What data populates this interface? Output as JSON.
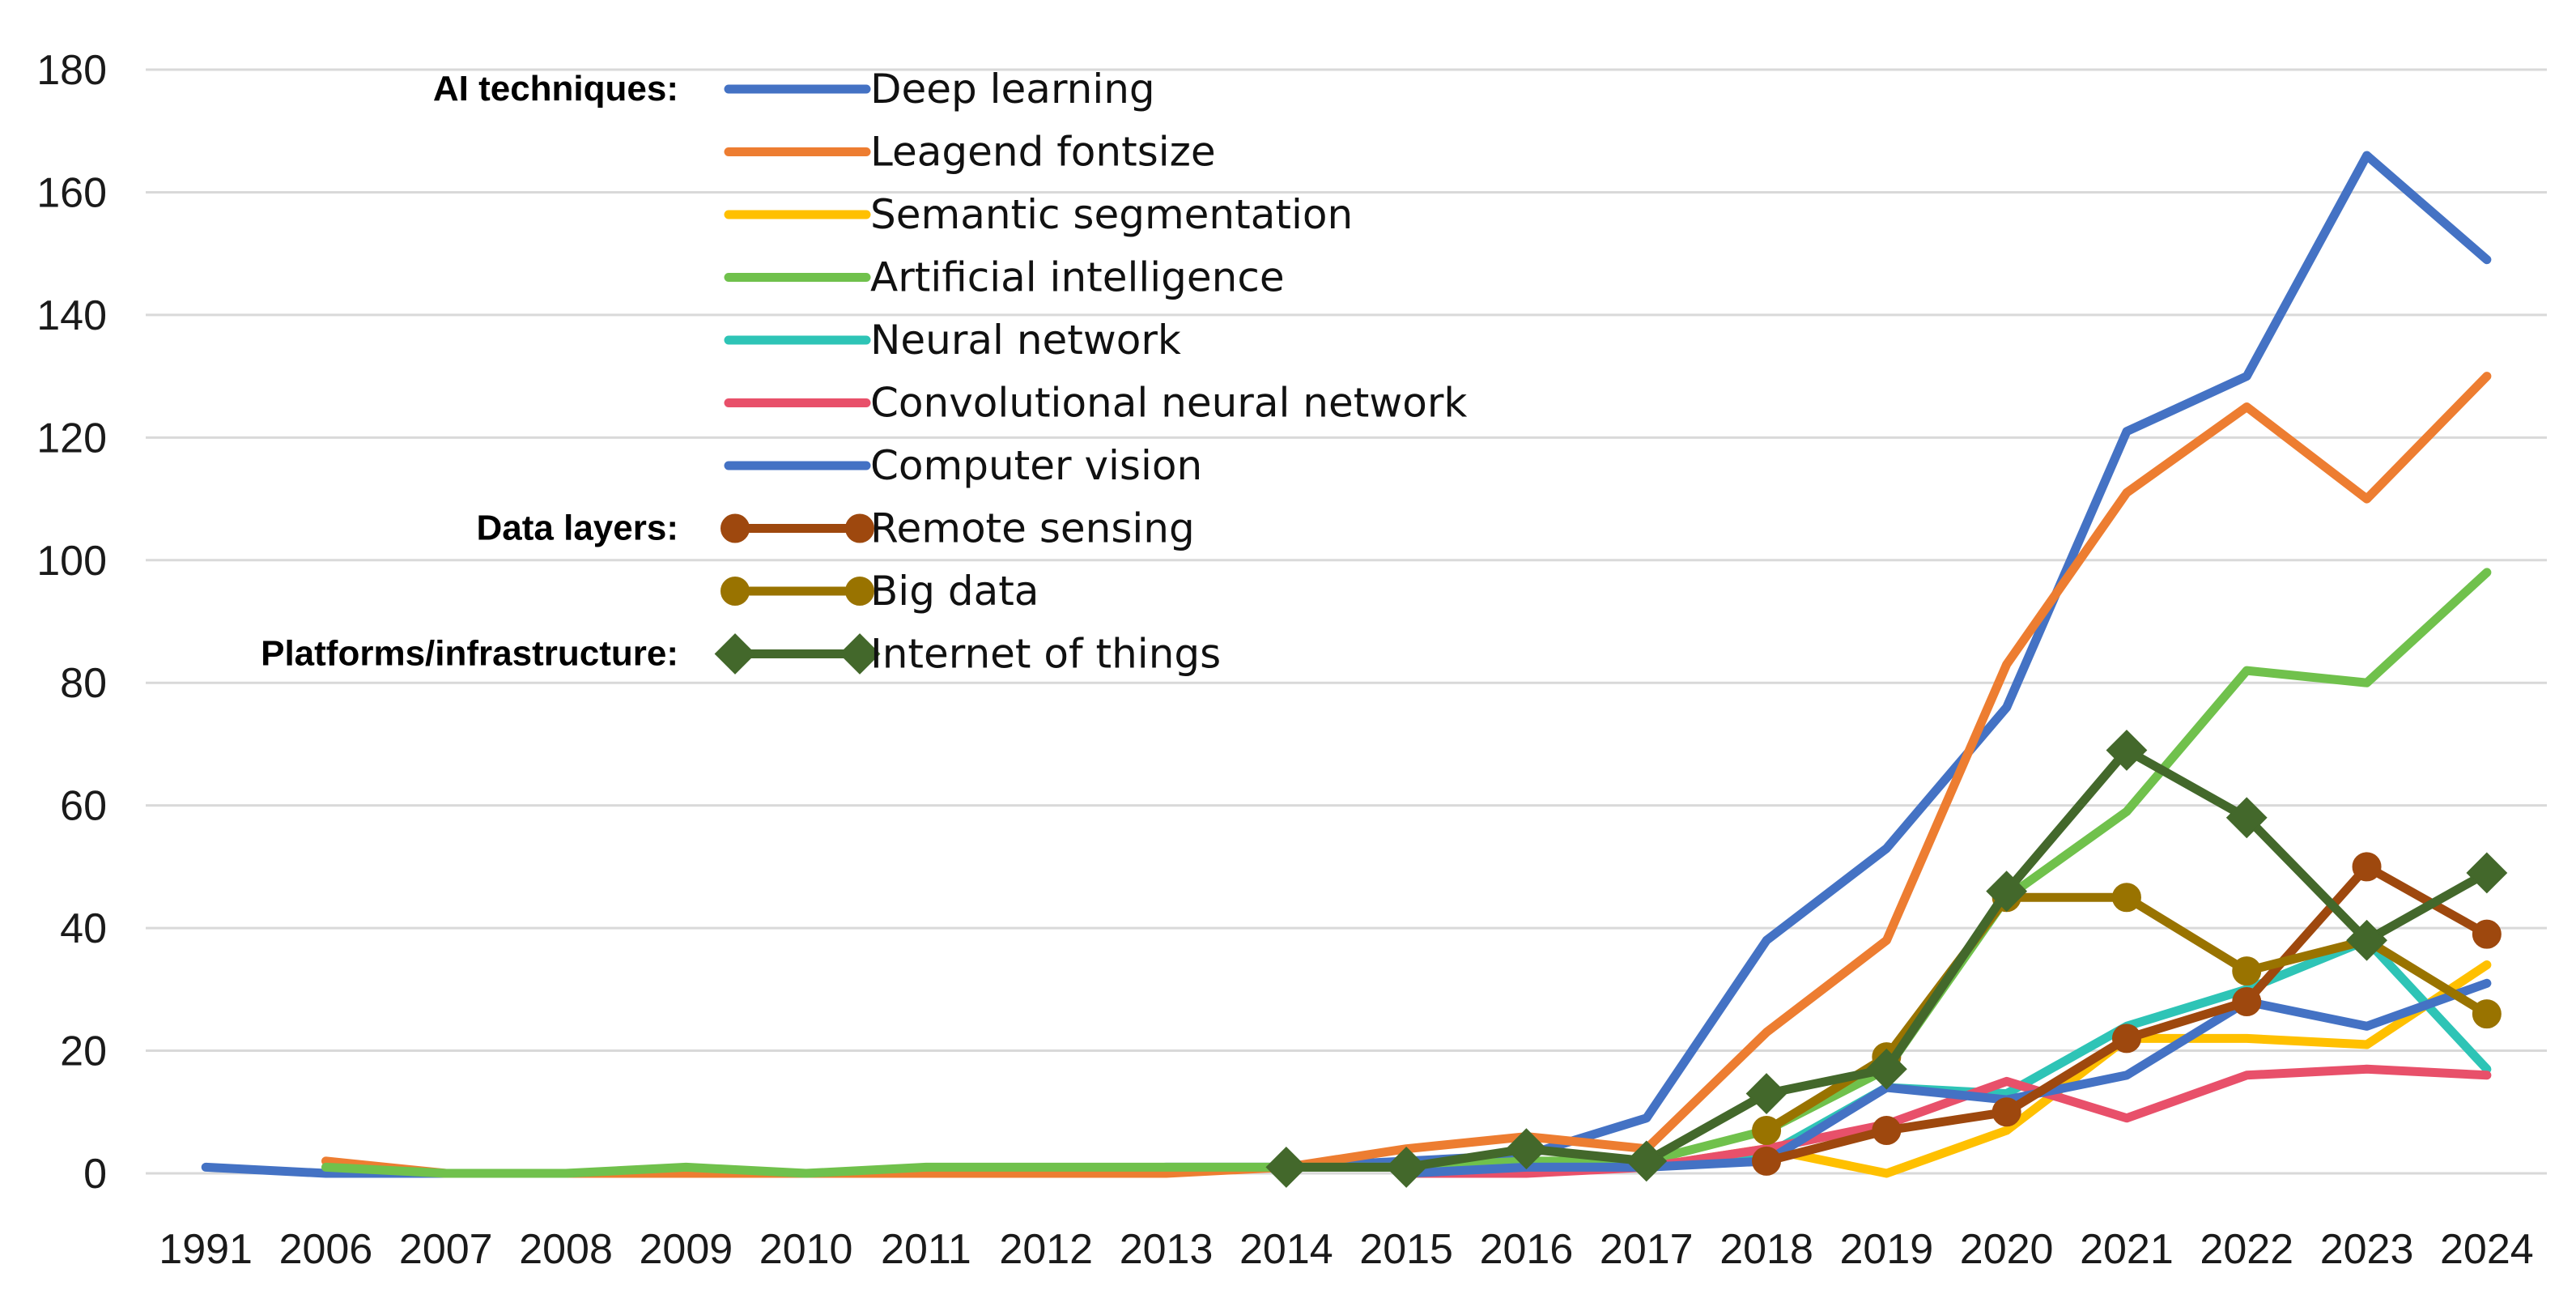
{
  "chart_data": {
    "type": "line",
    "title": "",
    "xlabel": "",
    "ylabel": "",
    "ylim": [
      0,
      180
    ],
    "yticks": [
      0,
      20,
      40,
      60,
      80,
      100,
      120,
      140,
      160,
      180
    ],
    "grid": true,
    "legend_position": "top-left",
    "categories": [
      "1991",
      "2006",
      "2007",
      "2008",
      "2009",
      "2010",
      "2011",
      "2012",
      "2013",
      "2014",
      "2015",
      "2016",
      "2017",
      "2018",
      "2019",
      "2020",
      "2021",
      "2022",
      "2023",
      "2024"
    ],
    "legend_groups": [
      {
        "label": "AI techniques:",
        "series_start": 0
      },
      {
        "label": "Data layers:",
        "series_start": 7
      },
      {
        "label": "Platforms/infrastructure:",
        "series_start": 9
      }
    ],
    "series": [
      {
        "name": "Deep learning",
        "color": "#4472C4",
        "marker": "none",
        "values": [
          1,
          0,
          0,
          0,
          0,
          0,
          0,
          0,
          1,
          1,
          2,
          3,
          9,
          38,
          53,
          76,
          121,
          130,
          166,
          149
        ]
      },
      {
        "name": "Leagend fontsize",
        "color": "#ED7D31",
        "marker": "none",
        "values": [
          null,
          2,
          0,
          0,
          0,
          0,
          0,
          0,
          0,
          1,
          4,
          6,
          4,
          23,
          38,
          83,
          111,
          125,
          110,
          130
        ]
      },
      {
        "name": "Semantic segmentation",
        "color": "#FFC000",
        "marker": "none",
        "values": [
          null,
          null,
          null,
          null,
          null,
          null,
          null,
          null,
          null,
          null,
          0,
          1,
          1,
          4,
          0,
          7,
          22,
          22,
          21,
          34
        ]
      },
      {
        "name": "Artificial intelligence",
        "color": "#70C14C",
        "marker": "none",
        "values": [
          null,
          1,
          0,
          0,
          1,
          0,
          1,
          1,
          1,
          1,
          1,
          2,
          2,
          7,
          17,
          45,
          59,
          82,
          80,
          98
        ]
      },
      {
        "name": "Neural network",
        "color": "#2EC4B6",
        "marker": "none",
        "values": [
          null,
          null,
          null,
          null,
          null,
          null,
          null,
          null,
          null,
          null,
          0,
          1,
          1,
          3,
          14,
          13,
          24,
          30,
          38,
          17
        ]
      },
      {
        "name": "Convolutional neural network",
        "color": "#E8506A",
        "marker": "none",
        "values": [
          null,
          null,
          null,
          null,
          null,
          null,
          null,
          null,
          null,
          null,
          0,
          0,
          1,
          4,
          8,
          15,
          9,
          16,
          17,
          16
        ]
      },
      {
        "name": "Computer vision",
        "color": "#4472C4",
        "marker": "none",
        "values": [
          null,
          null,
          null,
          null,
          null,
          null,
          null,
          null,
          null,
          null,
          0,
          1,
          1,
          2,
          14,
          12,
          16,
          28,
          24,
          31
        ]
      },
      {
        "name": "Remote sensing",
        "color": "#9E480E",
        "marker": "circle",
        "values": [
          null,
          null,
          null,
          null,
          null,
          null,
          null,
          null,
          null,
          null,
          null,
          null,
          null,
          2,
          7,
          10,
          22,
          28,
          50,
          39
        ]
      },
      {
        "name": "Big data",
        "color": "#997300",
        "marker": "circle",
        "values": [
          null,
          null,
          null,
          null,
          null,
          null,
          null,
          null,
          null,
          null,
          null,
          null,
          null,
          7,
          19,
          45,
          45,
          33,
          38,
          26
        ]
      },
      {
        "name": "Internet of things",
        "color": "#43682B",
        "marker": "diamond",
        "values": [
          null,
          null,
          null,
          null,
          null,
          null,
          null,
          null,
          null,
          1,
          1,
          4,
          2,
          13,
          17,
          46,
          69,
          58,
          38,
          49
        ]
      }
    ]
  }
}
